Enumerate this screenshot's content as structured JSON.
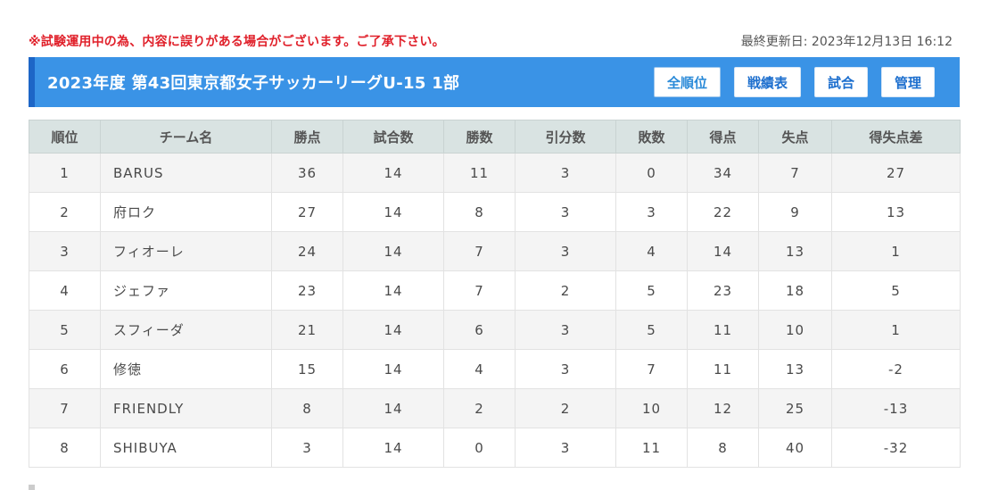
{
  "notice": "※試験運用中の為、内容に誤りがある場合がございます。ご了承下さい。",
  "last_updated": "最終更新日: 2023年12月13日 16:12",
  "league_title": "2023年度 第43回東京都女子サッカーリーグU-15 1部",
  "nav": {
    "standings": "全順位",
    "results_table": "戦績表",
    "matches": "試合",
    "admin": "管理",
    "active": "standings"
  },
  "colors": {
    "notice": "#e0202a",
    "header_bar": "#3a93e6",
    "header_accent": "#1d66c7",
    "table_header": "#d9e3e2"
  },
  "table": {
    "headers": [
      "順位",
      "チーム名",
      "勝点",
      "試合数",
      "勝数",
      "引分数",
      "敗数",
      "得点",
      "失点",
      "得失点差"
    ],
    "rows": [
      [
        "1",
        "BARUS",
        "36",
        "14",
        "11",
        "3",
        "0",
        "34",
        "7",
        "27"
      ],
      [
        "2",
        "府ロク",
        "27",
        "14",
        "8",
        "3",
        "3",
        "22",
        "9",
        "13"
      ],
      [
        "3",
        "フィオーレ",
        "24",
        "14",
        "7",
        "3",
        "4",
        "14",
        "13",
        "1"
      ],
      [
        "4",
        "ジェファ",
        "23",
        "14",
        "7",
        "2",
        "5",
        "23",
        "18",
        "5"
      ],
      [
        "5",
        "スフィーダ",
        "21",
        "14",
        "6",
        "3",
        "5",
        "11",
        "10",
        "1"
      ],
      [
        "6",
        "修徳",
        "15",
        "14",
        "4",
        "3",
        "7",
        "11",
        "13",
        "-2"
      ],
      [
        "7",
        "FRIENDLY",
        "8",
        "14",
        "2",
        "2",
        "10",
        "12",
        "25",
        "-13"
      ],
      [
        "8",
        "SHIBUYA",
        "3",
        "14",
        "0",
        "3",
        "11",
        "8",
        "40",
        "-32"
      ]
    ]
  }
}
